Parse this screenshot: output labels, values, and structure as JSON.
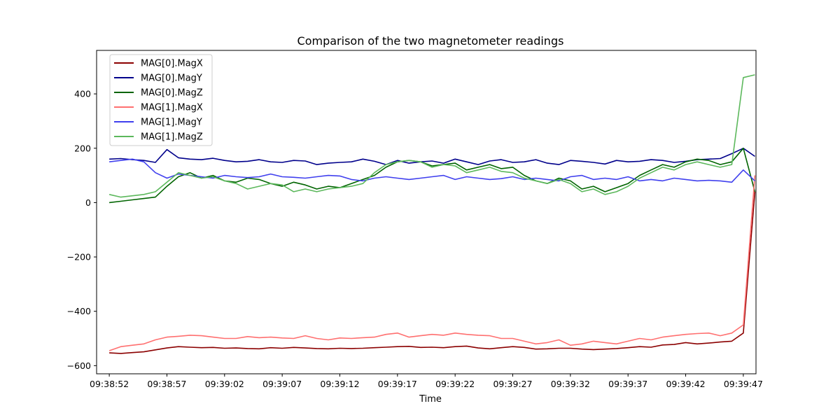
{
  "chart_data": {
    "type": "line",
    "title": "Comparison of the two magnetometer readings",
    "xlabel": "Time",
    "ylabel": "",
    "x_ticks": [
      "09:38:52",
      "09:38:57",
      "09:39:02",
      "09:39:07",
      "09:39:12",
      "09:39:17",
      "09:39:22",
      "09:39:27",
      "09:39:32",
      "09:39:37",
      "09:39:42",
      "09:39:47"
    ],
    "y_ticks": [
      "−600",
      "−400",
      "−200",
      "0",
      "200",
      "400"
    ],
    "xlim": [
      "09:38:50.9",
      "09:39:48.1"
    ],
    "ylim": [
      -630,
      560
    ],
    "grid": false,
    "legend_position": "top-left",
    "x": [
      "09:38:52",
      "09:38:53",
      "09:38:54",
      "09:38:55",
      "09:38:56",
      "09:38:57",
      "09:38:58",
      "09:38:59",
      "09:39:00",
      "09:39:01",
      "09:39:02",
      "09:39:03",
      "09:39:04",
      "09:39:05",
      "09:39:06",
      "09:39:07",
      "09:39:08",
      "09:39:09",
      "09:39:10",
      "09:39:11",
      "09:39:12",
      "09:39:13",
      "09:39:14",
      "09:39:15",
      "09:39:16",
      "09:39:17",
      "09:39:18",
      "09:39:19",
      "09:39:20",
      "09:39:21",
      "09:39:22",
      "09:39:23",
      "09:39:24",
      "09:39:25",
      "09:39:26",
      "09:39:27",
      "09:39:28",
      "09:39:29",
      "09:39:30",
      "09:39:31",
      "09:39:32",
      "09:39:33",
      "09:39:34",
      "09:39:35",
      "09:39:36",
      "09:39:37",
      "09:39:38",
      "09:39:39",
      "09:39:40",
      "09:39:41",
      "09:39:42",
      "09:39:43",
      "09:39:44",
      "09:39:45",
      "09:39:46",
      "09:39:47",
      "09:39:48"
    ],
    "series": [
      {
        "name": "MAG[0].MagX",
        "color": "#8b0000",
        "values": [
          -553,
          -555,
          -552,
          -549,
          -542,
          -535,
          -530,
          -532,
          -534,
          -533,
          -536,
          -535,
          -537,
          -538,
          -534,
          -536,
          -533,
          -535,
          -537,
          -538,
          -536,
          -537,
          -536,
          -534,
          -532,
          -530,
          -529,
          -533,
          -532,
          -534,
          -530,
          -528,
          -535,
          -538,
          -534,
          -530,
          -533,
          -539,
          -538,
          -536,
          -536,
          -539,
          -541,
          -539,
          -537,
          -534,
          -530,
          -532,
          -524,
          -522,
          -515,
          -520,
          -517,
          -513,
          -510,
          -480,
          40
        ]
      },
      {
        "name": "MAG[0].MagY",
        "color": "#00008b",
        "values": [
          160,
          162,
          158,
          155,
          148,
          195,
          165,
          160,
          158,
          163,
          155,
          150,
          152,
          158,
          150,
          148,
          155,
          153,
          140,
          145,
          148,
          150,
          160,
          152,
          140,
          155,
          145,
          150,
          153,
          145,
          160,
          150,
          140,
          153,
          158,
          148,
          150,
          158,
          145,
          140,
          155,
          152,
          148,
          142,
          155,
          150,
          152,
          158,
          155,
          148,
          152,
          158,
          160,
          162,
          180,
          200,
          170
        ]
      },
      {
        "name": "MAG[0].MagZ",
        "color": "#006400",
        "values": [
          0,
          5,
          10,
          15,
          20,
          60,
          95,
          110,
          90,
          100,
          80,
          75,
          90,
          85,
          70,
          60,
          75,
          65,
          50,
          60,
          55,
          70,
          85,
          100,
          130,
          150,
          155,
          150,
          135,
          140,
          145,
          120,
          130,
          140,
          125,
          130,
          100,
          80,
          70,
          90,
          80,
          50,
          60,
          40,
          55,
          70,
          100,
          120,
          140,
          130,
          150,
          160,
          155,
          140,
          150,
          200,
          40
        ]
      },
      {
        "name": "MAG[1].MagX",
        "color": "#ff7070",
        "values": [
          -545,
          -530,
          -525,
          -520,
          -505,
          -495,
          -492,
          -488,
          -490,
          -495,
          -500,
          -500,
          -493,
          -497,
          -495,
          -498,
          -500,
          -490,
          -500,
          -505,
          -498,
          -500,
          -497,
          -495,
          -485,
          -480,
          -495,
          -490,
          -485,
          -488,
          -480,
          -485,
          -488,
          -490,
          -500,
          -500,
          -510,
          -520,
          -515,
          -505,
          -525,
          -520,
          -510,
          -515,
          -520,
          -510,
          -500,
          -505,
          -495,
          -490,
          -485,
          -482,
          -480,
          -490,
          -480,
          -450,
          100
        ]
      },
      {
        "name": "MAG[1].MagY",
        "color": "#4040ee",
        "values": [
          150,
          155,
          160,
          150,
          110,
          90,
          105,
          100,
          95,
          90,
          100,
          95,
          92,
          95,
          105,
          95,
          93,
          90,
          95,
          100,
          98,
          85,
          80,
          90,
          95,
          90,
          85,
          90,
          95,
          100,
          85,
          95,
          90,
          85,
          88,
          95,
          85,
          90,
          85,
          80,
          95,
          100,
          85,
          90,
          85,
          95,
          80,
          85,
          80,
          90,
          85,
          80,
          82,
          80,
          75,
          120,
          80
        ]
      },
      {
        "name": "MAG[1].MagZ",
        "color": "#5cb85c",
        "values": [
          30,
          20,
          25,
          30,
          40,
          75,
          110,
          100,
          90,
          95,
          80,
          70,
          50,
          60,
          70,
          65,
          40,
          50,
          40,
          50,
          55,
          60,
          70,
          110,
          140,
          150,
          155,
          150,
          130,
          140,
          135,
          110,
          120,
          130,
          115,
          110,
          90,
          80,
          70,
          85,
          70,
          40,
          50,
          30,
          40,
          60,
          90,
          110,
          130,
          120,
          140,
          150,
          140,
          130,
          140,
          460,
          470
        ]
      }
    ]
  }
}
